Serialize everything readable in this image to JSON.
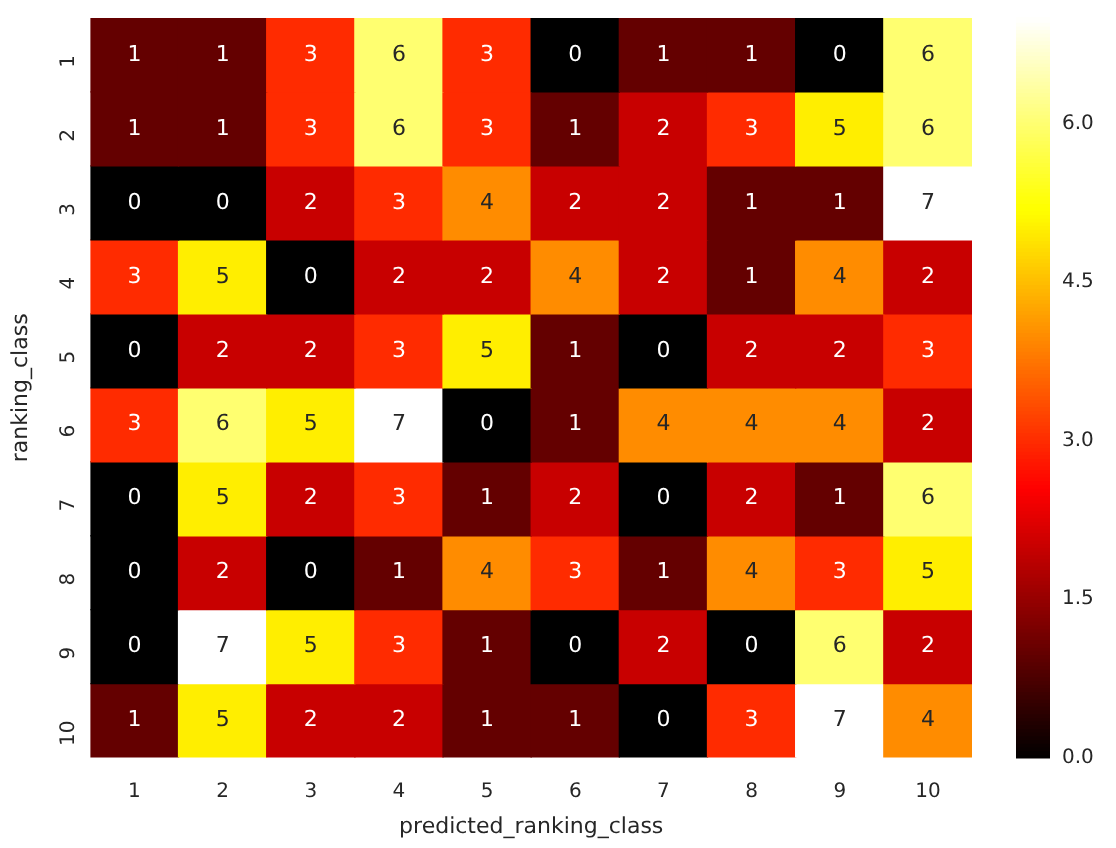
{
  "chart_data": {
    "type": "heatmap",
    "xlabel": "predicted_ranking_class",
    "ylabel": "ranking_class",
    "categories": [
      "1",
      "2",
      "3",
      "4",
      "5",
      "6",
      "7",
      "8",
      "9",
      "10"
    ],
    "y_categories": [
      "1",
      "2",
      "3",
      "4",
      "5",
      "6",
      "7",
      "8",
      "9",
      "10"
    ],
    "cells": [
      [
        1,
        1,
        3,
        6,
        3,
        0,
        1,
        1,
        0,
        6
      ],
      [
        1,
        1,
        3,
        6,
        3,
        1,
        2,
        3,
        5,
        6
      ],
      [
        0,
        0,
        2,
        3,
        4,
        2,
        2,
        1,
        1,
        7
      ],
      [
        3,
        5,
        0,
        2,
        2,
        4,
        2,
        1,
        4,
        2
      ],
      [
        0,
        2,
        2,
        3,
        5,
        1,
        0,
        2,
        2,
        3
      ],
      [
        3,
        6,
        5,
        7,
        0,
        1,
        4,
        4,
        4,
        2
      ],
      [
        0,
        5,
        2,
        3,
        1,
        2,
        0,
        2,
        1,
        6
      ],
      [
        0,
        2,
        0,
        1,
        4,
        3,
        1,
        4,
        3,
        5
      ],
      [
        0,
        7,
        5,
        3,
        1,
        0,
        2,
        0,
        6,
        2
      ],
      [
        1,
        5,
        2,
        2,
        1,
        1,
        0,
        3,
        7,
        4
      ]
    ],
    "clim": [
      0,
      7
    ],
    "cticks": [
      {
        "value": 0,
        "label": "0.0"
      },
      {
        "value": 1.5,
        "label": "1.5"
      },
      {
        "value": 3,
        "label": "3.0"
      },
      {
        "value": 4.5,
        "label": "4.5"
      },
      {
        "value": 6,
        "label": "6.0"
      }
    ],
    "data_labels": true
  }
}
